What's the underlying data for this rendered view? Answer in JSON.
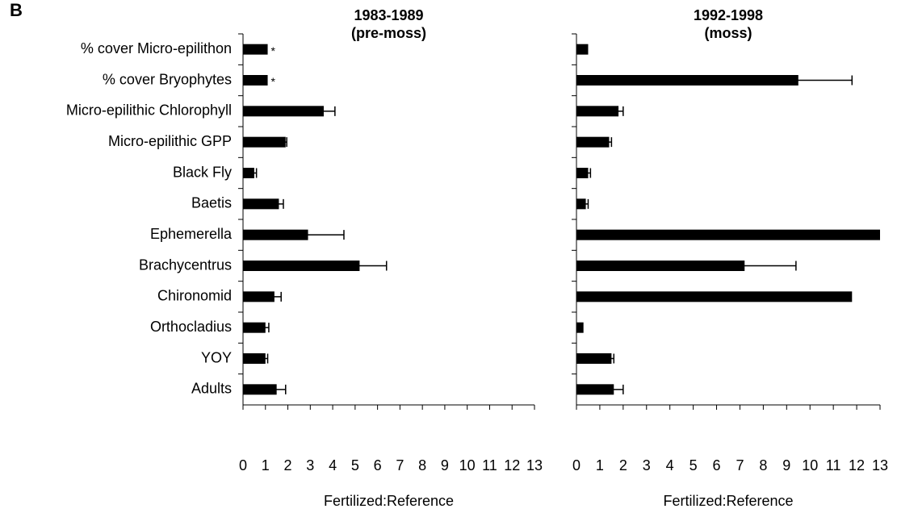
{
  "panel_label": "B",
  "chart_data": [
    {
      "type": "hbar",
      "title": [
        "1983-1989",
        "(pre-moss)"
      ],
      "xlabel": "Fertilized:Reference",
      "categories": [
        "% cover Micro-epilithon",
        "% cover Bryophytes",
        "Micro-epilithic Chlorophyll",
        "Micro-epilithic GPP",
        "Black Fly",
        "Baetis",
        "Ephemerella",
        "Brachycentrus",
        "Chironomid",
        "Orthocladius",
        "YOY",
        "Adults"
      ],
      "values": [
        1.1,
        1.1,
        3.6,
        1.9,
        0.5,
        1.6,
        2.9,
        5.2,
        1.4,
        1.0,
        1.0,
        1.5
      ],
      "errors": [
        null,
        null,
        0.5,
        0.05,
        0.1,
        0.2,
        1.6,
        1.2,
        0.3,
        0.15,
        0.1,
        0.4
      ],
      "value_labels": [
        "*",
        "*",
        null,
        null,
        null,
        null,
        null,
        null,
        null,
        null,
        null,
        null
      ],
      "color": "#000000",
      "xlim": [
        0,
        13
      ],
      "xticks": [
        0,
        1,
        2,
        3,
        4,
        5,
        6,
        7,
        8,
        9,
        10,
        11,
        12,
        13
      ]
    },
    {
      "type": "hbar",
      "title": [
        "1992-1998",
        "(moss)"
      ],
      "xlabel": "Fertilized:Reference",
      "values": [
        0.5,
        9.5,
        1.8,
        1.4,
        0.5,
        0.4,
        13,
        7.2,
        11.8,
        0.3,
        1.5,
        1.6
      ],
      "errors": [
        null,
        2.3,
        0.2,
        0.1,
        0.1,
        0.1,
        null,
        2.2,
        null,
        null,
        0.1,
        0.4
      ],
      "color": "#000000",
      "xlim": [
        0,
        13
      ],
      "xticks": [
        0,
        1,
        2,
        3,
        4,
        5,
        6,
        7,
        8,
        9,
        10,
        11,
        12,
        13
      ]
    }
  ]
}
